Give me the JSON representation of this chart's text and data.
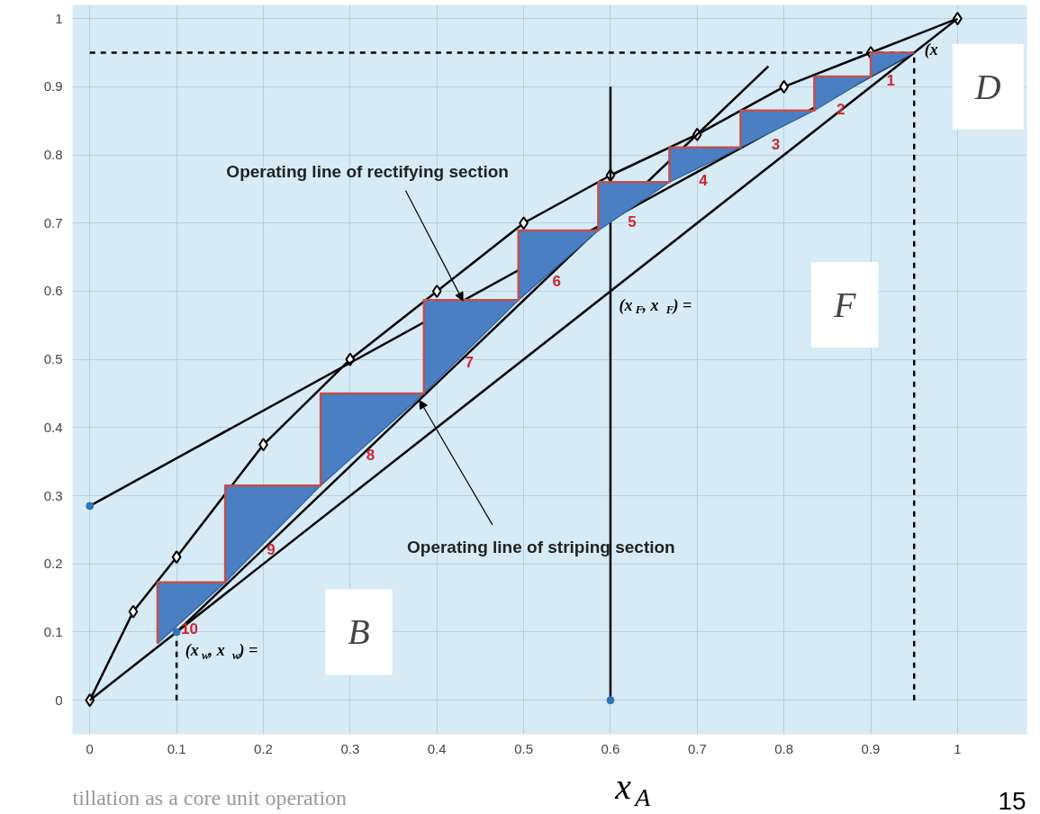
{
  "chart_data": {
    "type": "line",
    "xlabel": "x$_{A}$",
    "xlim": [
      -0.02,
      1.08
    ],
    "ylim": [
      -0.05,
      1.02
    ],
    "xticks": [
      0,
      0.1,
      0.2,
      0.3,
      0.4,
      0.5,
      0.6,
      0.7,
      0.8,
      0.9,
      1
    ],
    "yticks": [
      0,
      0.1,
      0.2,
      0.3,
      0.4,
      0.5,
      0.6,
      0.7,
      0.8,
      0.9,
      1
    ],
    "grid": true,
    "series": [
      {
        "color": "#000000",
        "marker": "diamond",
        "x": [
          0,
          0.05,
          0.1,
          0.2,
          0.3,
          0.4,
          0.5,
          0.6,
          0.7,
          0.8,
          0.9,
          1
        ],
        "values": [
          0,
          0.13,
          0.21,
          0.375,
          0.5,
          0.6,
          0.7,
          0.77,
          0.83,
          0.9,
          0.95,
          1
        ]
      },
      {
        "color": "#000000",
        "x": [
          0,
          1
        ],
        "values": [
          0,
          1
        ]
      },
      {
        "color": "#000000",
        "x": [
          0,
          0.95
        ],
        "values": [
          0.285,
          0.95
        ]
      },
      {
        "color": "#000000",
        "x": [
          0.1,
          0.782
        ],
        "values": [
          0.1,
          0.93
        ]
      },
      {
        "color": "#000000",
        "x": [
          0.6,
          0.6
        ],
        "values": [
          0,
          0.9
        ]
      },
      {
        "color": "#000000",
        "line_style": "dashed",
        "x": [
          0,
          0.95
        ],
        "values": [
          0.95,
          0.95
        ]
      },
      {
        "color": "#000000",
        "line_style": "dashed",
        "x": [
          0.95,
          0.95
        ],
        "values": [
          0,
          0.95
        ]
      },
      {
        "color": "#000000",
        "line_style": "dashed",
        "x": [
          0.1,
          0.1
        ],
        "values": [
          0,
          0.1
        ]
      },
      {
        "color": "#c0504d",
        "x": [
          0.95,
          0.9,
          0.9,
          0.835,
          0.835,
          0.75,
          0.75,
          0.668,
          0.668,
          0.586,
          0.586,
          0.494,
          0.494,
          0.385,
          0.385,
          0.266,
          0.266,
          0.156,
          0.156,
          0.078,
          0.078
        ],
        "values": [
          0.95,
          0.95,
          0.915,
          0.915,
          0.865,
          0.865,
          0.811,
          0.811,
          0.76,
          0.76,
          0.689,
          0.689,
          0.587,
          0.587,
          0.45,
          0.45,
          0.315,
          0.315,
          0.173,
          0.173,
          0.083
        ],
        "upper": [
          0.95,
          0.95,
          0.915,
          0.915,
          0.865,
          0.865,
          0.811,
          0.811,
          0.76,
          0.76,
          0.689,
          0.689,
          0.587,
          0.587,
          0.45,
          0.45,
          0.315,
          0.315,
          0.173,
          0.173,
          0.083
        ],
        "lower": [
          0.95,
          0.915,
          0.915,
          0.865,
          0.865,
          0.811,
          0.811,
          0.76,
          0.76,
          0.689,
          0.689,
          0.587,
          0.587,
          0.45,
          0.45,
          0.315,
          0.315,
          0.173,
          0.173,
          0.083,
          0.083
        ]
      },
      {
        "type": "scatter",
        "color": "#2e75b6",
        "marker": "circle",
        "x": [
          0,
          0.6,
          0.1
        ],
        "values": [
          0.285,
          0,
          0.1
        ]
      }
    ],
    "annotations": [
      "1",
      "2",
      "3",
      "4",
      "5",
      "6",
      "7",
      "8",
      "9",
      "10",
      {
        "text": "Operating line of rectifying section",
        "x": 0.43,
        "y": 0.586
      },
      {
        "text": "Operating line of striping section",
        "x": 0.38,
        "y": 0.44
      },
      "(x$_{F}$, x$_{F}$) =",
      "F",
      "(x$_{w}$, x$_{w}$) =",
      "B",
      "D",
      "(x",
      "tillation as a core unit operation",
      "15"
    ]
  }
}
